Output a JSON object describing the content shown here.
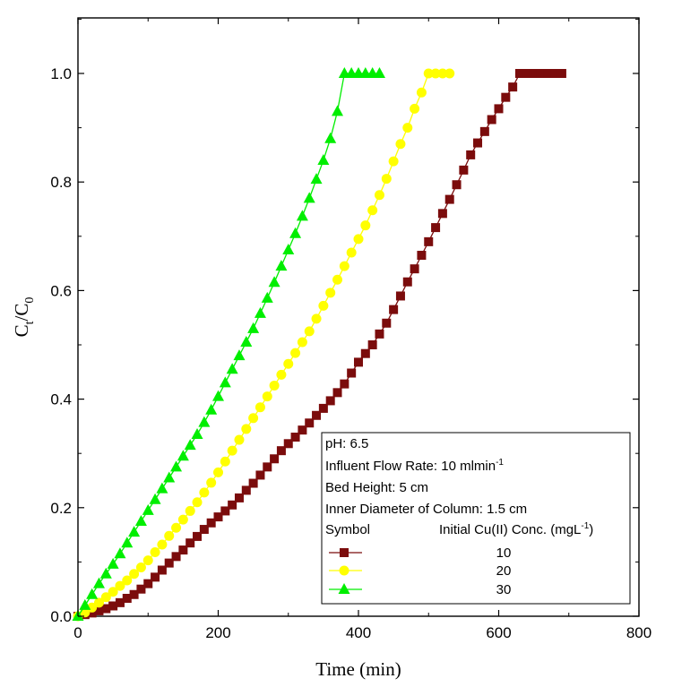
{
  "chart_data": {
    "type": "line",
    "title": "",
    "xlabel": "Time (min)",
    "ylabel": {
      "base": "C",
      "sub1": "t",
      "mid": "/C",
      "sub2": "0"
    },
    "xlim": [
      0,
      800
    ],
    "ylim": [
      0,
      1.1
    ],
    "x_ticks": [
      0,
      200,
      400,
      600,
      800
    ],
    "x_tick_labels": [
      "0",
      "200",
      "400",
      "600",
      "800"
    ],
    "y_ticks": [
      0,
      0.2,
      0.4,
      0.6,
      0.8,
      1.0
    ],
    "y_tick_labels": [
      "0.0",
      "0.2",
      "0.4",
      "0.6",
      "0.8",
      "1.0"
    ],
    "grid": false,
    "legend_position": "bottom-right",
    "annotations": {
      "ph": "pH: 6.5",
      "flow_rate": "Influent Flow Rate: 10 mlmin",
      "flow_rate_sup": "-1",
      "bed_height": "Bed Height: 5 cm",
      "inner_diameter": "Inner Diameter of Column: 1.5 cm",
      "symbol_header": "Symbol",
      "conc_header": "Initial Cu(II) Conc. (mgL",
      "conc_header_sup": "-1",
      "conc_header_close": ")"
    },
    "series": [
      {
        "name": "10",
        "marker": "square",
        "color": "#7B0C0C",
        "x": [
          0,
          10,
          20,
          30,
          40,
          50,
          60,
          70,
          80,
          90,
          100,
          110,
          120,
          130,
          140,
          150,
          160,
          170,
          180,
          190,
          200,
          210,
          220,
          230,
          240,
          250,
          260,
          270,
          280,
          290,
          300,
          310,
          320,
          330,
          340,
          350,
          360,
          370,
          380,
          390,
          400,
          410,
          420,
          430,
          440,
          450,
          460,
          470,
          480,
          490,
          500,
          510,
          520,
          530,
          540,
          550,
          560,
          570,
          580,
          590,
          600,
          610,
          620,
          630,
          640,
          650,
          660,
          670,
          680,
          690
        ],
        "values": [
          0,
          0.003,
          0.006,
          0.01,
          0.014,
          0.019,
          0.025,
          0.033,
          0.04,
          0.05,
          0.06,
          0.072,
          0.085,
          0.098,
          0.11,
          0.122,
          0.135,
          0.147,
          0.16,
          0.172,
          0.183,
          0.194,
          0.205,
          0.218,
          0.232,
          0.245,
          0.26,
          0.275,
          0.29,
          0.305,
          0.318,
          0.33,
          0.343,
          0.356,
          0.37,
          0.383,
          0.397,
          0.412,
          0.428,
          0.448,
          0.468,
          0.484,
          0.5,
          0.52,
          0.54,
          0.565,
          0.59,
          0.616,
          0.64,
          0.665,
          0.69,
          0.716,
          0.742,
          0.768,
          0.795,
          0.822,
          0.85,
          0.872,
          0.893,
          0.915,
          0.935,
          0.956,
          0.975,
          1.0,
          1.0,
          1.0,
          1.0,
          1.0,
          1.0,
          1.0
        ]
      },
      {
        "name": "20",
        "marker": "circle",
        "color": "#FFFF00",
        "x": [
          0,
          10,
          20,
          30,
          40,
          50,
          60,
          70,
          80,
          90,
          100,
          110,
          120,
          130,
          140,
          150,
          160,
          170,
          180,
          190,
          200,
          210,
          220,
          230,
          240,
          250,
          260,
          270,
          280,
          290,
          300,
          310,
          320,
          330,
          340,
          350,
          360,
          370,
          380,
          390,
          400,
          410,
          420,
          430,
          440,
          450,
          460,
          470,
          480,
          490,
          500,
          510,
          520,
          530
        ],
        "values": [
          0,
          0.007,
          0.016,
          0.025,
          0.035,
          0.045,
          0.056,
          0.066,
          0.078,
          0.09,
          0.103,
          0.118,
          0.132,
          0.148,
          0.163,
          0.178,
          0.194,
          0.21,
          0.228,
          0.246,
          0.265,
          0.285,
          0.305,
          0.325,
          0.345,
          0.365,
          0.385,
          0.405,
          0.425,
          0.445,
          0.465,
          0.485,
          0.505,
          0.525,
          0.548,
          0.572,
          0.596,
          0.62,
          0.645,
          0.67,
          0.695,
          0.72,
          0.748,
          0.776,
          0.806,
          0.838,
          0.87,
          0.9,
          0.935,
          0.965,
          1.0,
          1.0,
          1.0,
          1.0
        ]
      },
      {
        "name": "30",
        "marker": "triangle",
        "color": "#00EE00",
        "x": [
          0,
          10,
          20,
          30,
          40,
          50,
          60,
          70,
          80,
          90,
          100,
          110,
          120,
          130,
          140,
          150,
          160,
          170,
          180,
          190,
          200,
          210,
          220,
          230,
          240,
          250,
          260,
          270,
          280,
          290,
          300,
          310,
          320,
          330,
          340,
          350,
          360,
          370,
          380,
          390,
          400,
          410,
          420,
          430
        ],
        "values": [
          0,
          0.02,
          0.04,
          0.06,
          0.078,
          0.096,
          0.115,
          0.135,
          0.155,
          0.175,
          0.195,
          0.215,
          0.235,
          0.255,
          0.275,
          0.295,
          0.315,
          0.335,
          0.357,
          0.38,
          0.405,
          0.43,
          0.455,
          0.48,
          0.505,
          0.53,
          0.558,
          0.586,
          0.615,
          0.645,
          0.675,
          0.705,
          0.737,
          0.77,
          0.805,
          0.84,
          0.88,
          0.93,
          1.0,
          1.0,
          1.0,
          1.0,
          1.0,
          1.0
        ]
      }
    ]
  }
}
